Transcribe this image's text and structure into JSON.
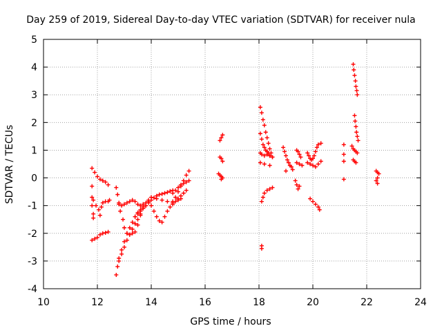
{
  "chart_data": {
    "type": "scatter",
    "title": "Day 259 of 2019, Sidereal Day-to-day VTEC variation (SDTVAR) for receiver nula",
    "xlabel": "GPS time / hours",
    "ylabel": "SDTVAR / TECUs",
    "xlim": [
      10,
      24
    ],
    "ylim": [
      -4,
      5
    ],
    "x_ticks": [
      10,
      12,
      14,
      16,
      18,
      20,
      22,
      24
    ],
    "y_ticks": [
      -4,
      -3,
      -2,
      -1,
      0,
      1,
      2,
      3,
      4,
      5
    ],
    "x_tick_labels": [
      "10",
      "12",
      "14",
      "16",
      "18",
      "20",
      "22",
      "24"
    ],
    "y_tick_labels": [
      "-4",
      "-3",
      "-2",
      "-1",
      "0",
      "1",
      "2",
      "3",
      "4",
      "5"
    ],
    "grid": true,
    "marker": "+",
    "color": "#ff0000",
    "series": [
      {
        "values": [
          [
            11.8,
            0.35
          ],
          [
            11.9,
            0.2
          ],
          [
            12.0,
            0.05
          ],
          [
            12.1,
            -0.05
          ],
          [
            12.2,
            -0.1
          ],
          [
            12.3,
            -0.15
          ],
          [
            12.4,
            -0.25
          ]
        ]
      },
      {
        "values": [
          [
            11.8,
            -0.3
          ],
          [
            11.8,
            -0.7
          ],
          [
            11.8,
            -1.0
          ],
          [
            11.85,
            -1.3
          ],
          [
            11.85,
            -1.45
          ]
        ]
      },
      {
        "values": [
          [
            11.8,
            -2.25
          ],
          [
            11.9,
            -2.2
          ],
          [
            12.0,
            -2.15
          ],
          [
            12.1,
            -2.05
          ],
          [
            12.2,
            -2.0
          ],
          [
            12.3,
            -1.98
          ],
          [
            12.4,
            -1.95
          ]
        ]
      },
      {
        "values": [
          [
            11.85,
            -0.8
          ],
          [
            11.95,
            -1.0
          ],
          [
            12.05,
            -1.15
          ],
          [
            12.1,
            -1.35
          ],
          [
            12.15,
            -1.05
          ],
          [
            12.2,
            -0.9
          ],
          [
            12.3,
            -0.85
          ],
          [
            12.4,
            -0.85
          ],
          [
            12.45,
            -0.8
          ]
        ]
      },
      {
        "values": [
          [
            12.7,
            -0.35
          ],
          [
            12.75,
            -0.6
          ],
          [
            12.8,
            -0.9
          ],
          [
            12.85,
            -1.2
          ],
          [
            12.95,
            -1.5
          ],
          [
            13.0,
            -1.8
          ],
          [
            13.1,
            -2.0
          ],
          [
            13.2,
            -2.05
          ],
          [
            13.3,
            -2.0
          ],
          [
            13.4,
            -1.95
          ],
          [
            13.5,
            -1.7
          ],
          [
            13.6,
            -1.3
          ],
          [
            13.7,
            -1.1
          ],
          [
            13.8,
            -1.0
          ]
        ]
      },
      {
        "values": [
          [
            12.7,
            -3.5
          ],
          [
            12.75,
            -3.2
          ],
          [
            12.8,
            -2.9
          ],
          [
            12.9,
            -2.6
          ],
          [
            13.0,
            -2.3
          ],
          [
            13.1,
            -2.0
          ],
          [
            13.2,
            -1.8
          ],
          [
            13.3,
            -1.6
          ],
          [
            13.4,
            -1.4
          ],
          [
            13.5,
            -1.25
          ],
          [
            13.6,
            -1.15
          ],
          [
            13.7,
            -1.05
          ],
          [
            13.8,
            -1.0
          ]
        ]
      },
      {
        "values": [
          [
            12.8,
            -3.0
          ],
          [
            12.9,
            -2.75
          ],
          [
            13.0,
            -2.5
          ],
          [
            13.1,
            -2.25
          ],
          [
            13.2,
            -2.05
          ],
          [
            13.3,
            -1.85
          ],
          [
            13.4,
            -1.65
          ],
          [
            13.5,
            -1.5
          ],
          [
            13.6,
            -1.35
          ]
        ]
      },
      {
        "values": [
          [
            12.8,
            -0.95
          ],
          [
            12.9,
            -1.0
          ],
          [
            13.0,
            -0.95
          ],
          [
            13.1,
            -0.9
          ],
          [
            13.2,
            -0.85
          ],
          [
            13.3,
            -0.8
          ],
          [
            13.4,
            -0.85
          ],
          [
            13.5,
            -0.95
          ],
          [
            13.6,
            -1.0
          ],
          [
            13.7,
            -0.95
          ],
          [
            13.8,
            -0.9
          ],
          [
            13.9,
            -0.85
          ]
        ]
      },
      {
        "values": [
          [
            13.4,
            -1.4
          ],
          [
            13.5,
            -1.3
          ],
          [
            13.6,
            -1.2
          ],
          [
            13.7,
            -1.1
          ],
          [
            13.8,
            -1.0
          ],
          [
            13.9,
            -0.9
          ],
          [
            14.0,
            -0.8
          ],
          [
            14.1,
            -0.72
          ],
          [
            14.2,
            -0.65
          ],
          [
            14.3,
            -0.6
          ],
          [
            14.4,
            -0.58
          ],
          [
            14.5,
            -0.55
          ],
          [
            14.6,
            -0.52
          ],
          [
            14.7,
            -0.48
          ],
          [
            14.8,
            -0.45
          ]
        ]
      },
      {
        "values": [
          [
            13.9,
            -0.8
          ],
          [
            14.0,
            -1.0
          ],
          [
            14.1,
            -1.2
          ],
          [
            14.2,
            -1.4
          ],
          [
            14.3,
            -1.55
          ],
          [
            14.4,
            -1.6
          ],
          [
            14.5,
            -1.4
          ],
          [
            14.6,
            -1.2
          ],
          [
            14.7,
            -1.05
          ],
          [
            14.8,
            -0.95
          ],
          [
            14.9,
            -0.85
          ],
          [
            15.0,
            -0.8
          ],
          [
            15.1,
            -0.75
          ]
        ]
      },
      {
        "values": [
          [
            14.0,
            -0.7
          ],
          [
            14.2,
            -0.75
          ],
          [
            14.4,
            -0.8
          ],
          [
            14.6,
            -0.85
          ],
          [
            14.8,
            -0.85
          ],
          [
            15.0,
            -0.75
          ],
          [
            15.1,
            -0.65
          ],
          [
            15.2,
            -0.55
          ],
          [
            15.3,
            -0.45
          ]
        ]
      },
      {
        "values": [
          [
            14.8,
            -0.9
          ],
          [
            14.9,
            -0.7
          ],
          [
            15.0,
            -0.5
          ],
          [
            15.1,
            -0.3
          ],
          [
            15.2,
            -0.1
          ],
          [
            15.3,
            0.1
          ],
          [
            15.4,
            0.25
          ]
        ]
      },
      {
        "values": [
          [
            14.8,
            -0.55
          ],
          [
            14.9,
            -0.45
          ],
          [
            15.0,
            -0.35
          ],
          [
            15.1,
            -0.25
          ],
          [
            15.2,
            -0.2
          ],
          [
            15.3,
            -0.15
          ],
          [
            15.4,
            -0.1
          ]
        ]
      },
      {
        "values": [
          [
            16.55,
            1.35
          ],
          [
            16.6,
            1.45
          ],
          [
            16.65,
            1.55
          ],
          [
            16.55,
            0.75
          ],
          [
            16.6,
            0.7
          ],
          [
            16.65,
            0.6
          ],
          [
            16.5,
            0.15
          ],
          [
            16.55,
            0.1
          ],
          [
            16.6,
            0.05
          ],
          [
            16.65,
            0.0
          ],
          [
            16.6,
            -0.05
          ]
        ]
      },
      {
        "values": [
          [
            18.05,
            2.55
          ],
          [
            18.1,
            2.35
          ],
          [
            18.15,
            2.1
          ],
          [
            18.2,
            1.9
          ],
          [
            18.25,
            1.65
          ],
          [
            18.3,
            1.45
          ],
          [
            18.35,
            1.25
          ],
          [
            18.4,
            1.05
          ],
          [
            18.45,
            0.9
          ],
          [
            18.5,
            0.75
          ]
        ]
      },
      {
        "values": [
          [
            18.05,
            1.6
          ],
          [
            18.1,
            1.4
          ],
          [
            18.15,
            1.2
          ],
          [
            18.2,
            1.1
          ],
          [
            18.25,
            1.0
          ],
          [
            18.3,
            0.95
          ],
          [
            18.35,
            0.9
          ],
          [
            18.4,
            0.8
          ]
        ]
      },
      {
        "values": [
          [
            18.05,
            0.9
          ],
          [
            18.1,
            0.85
          ],
          [
            18.2,
            0.8
          ],
          [
            18.3,
            0.85
          ],
          [
            18.4,
            0.8
          ],
          [
            18.5,
            0.75
          ],
          [
            18.05,
            0.55
          ],
          [
            18.2,
            0.5
          ],
          [
            18.4,
            0.45
          ]
        ]
      },
      {
        "values": [
          [
            18.1,
            -0.85
          ],
          [
            18.15,
            -0.7
          ],
          [
            18.2,
            -0.55
          ],
          [
            18.3,
            -0.45
          ],
          [
            18.4,
            -0.4
          ],
          [
            18.5,
            -0.35
          ]
        ]
      },
      {
        "values": [
          [
            18.1,
            -2.45
          ],
          [
            18.1,
            -2.55
          ]
        ]
      },
      {
        "values": [
          [
            18.9,
            1.1
          ],
          [
            18.95,
            0.95
          ],
          [
            19.0,
            0.8
          ],
          [
            19.05,
            0.65
          ],
          [
            19.1,
            0.55
          ],
          [
            19.15,
            0.45
          ],
          [
            19.2,
            0.4
          ],
          [
            19.25,
            0.3
          ],
          [
            19.0,
            0.25
          ]
        ]
      },
      {
        "values": [
          [
            19.4,
            1.0
          ],
          [
            19.45,
            0.95
          ],
          [
            19.5,
            0.85
          ],
          [
            19.55,
            0.75
          ],
          [
            19.4,
            0.55
          ],
          [
            19.5,
            0.5
          ],
          [
            19.6,
            0.45
          ],
          [
            19.35,
            -0.1
          ],
          [
            19.4,
            -0.25
          ],
          [
            19.45,
            -0.4
          ],
          [
            19.5,
            -0.3
          ]
        ]
      },
      {
        "values": [
          [
            19.8,
            0.9
          ],
          [
            19.85,
            0.8
          ],
          [
            19.9,
            0.7
          ],
          [
            19.95,
            0.65
          ],
          [
            20.0,
            0.7
          ],
          [
            20.05,
            0.8
          ],
          [
            20.1,
            0.95
          ],
          [
            20.15,
            1.1
          ],
          [
            20.2,
            1.2
          ],
          [
            20.3,
            1.25
          ]
        ]
      },
      {
        "values": [
          [
            19.8,
            0.55
          ],
          [
            19.9,
            0.5
          ],
          [
            20.0,
            0.45
          ],
          [
            20.1,
            0.4
          ],
          [
            20.2,
            0.5
          ],
          [
            20.3,
            0.6
          ]
        ]
      },
      {
        "values": [
          [
            19.9,
            -0.75
          ],
          [
            20.0,
            -0.85
          ],
          [
            20.1,
            -0.95
          ],
          [
            20.2,
            -1.05
          ],
          [
            20.25,
            -1.15
          ]
        ]
      },
      {
        "values": [
          [
            21.15,
            1.2
          ],
          [
            21.15,
            0.85
          ],
          [
            21.15,
            0.6
          ],
          [
            21.15,
            -0.05
          ]
        ]
      },
      {
        "values": [
          [
            21.5,
            4.1
          ],
          [
            21.52,
            3.9
          ],
          [
            21.55,
            3.7
          ],
          [
            21.58,
            3.5
          ],
          [
            21.6,
            3.3
          ],
          [
            21.63,
            3.15
          ],
          [
            21.65,
            3.0
          ]
        ]
      },
      {
        "values": [
          [
            21.55,
            2.25
          ],
          [
            21.57,
            2.05
          ],
          [
            21.6,
            1.85
          ],
          [
            21.62,
            1.65
          ],
          [
            21.65,
            1.5
          ],
          [
            21.68,
            1.35
          ]
        ]
      },
      {
        "values": [
          [
            21.45,
            1.15
          ],
          [
            21.5,
            1.05
          ],
          [
            21.55,
            1.0
          ],
          [
            21.6,
            0.95
          ],
          [
            21.65,
            0.9
          ],
          [
            21.5,
            0.65
          ],
          [
            21.55,
            0.6
          ],
          [
            21.6,
            0.55
          ]
        ]
      },
      {
        "values": [
          [
            22.35,
            0.25
          ],
          [
            22.4,
            0.2
          ],
          [
            22.45,
            0.15
          ],
          [
            22.4,
            0.0
          ],
          [
            22.35,
            -0.1
          ],
          [
            22.4,
            -0.2
          ]
        ]
      }
    ]
  }
}
